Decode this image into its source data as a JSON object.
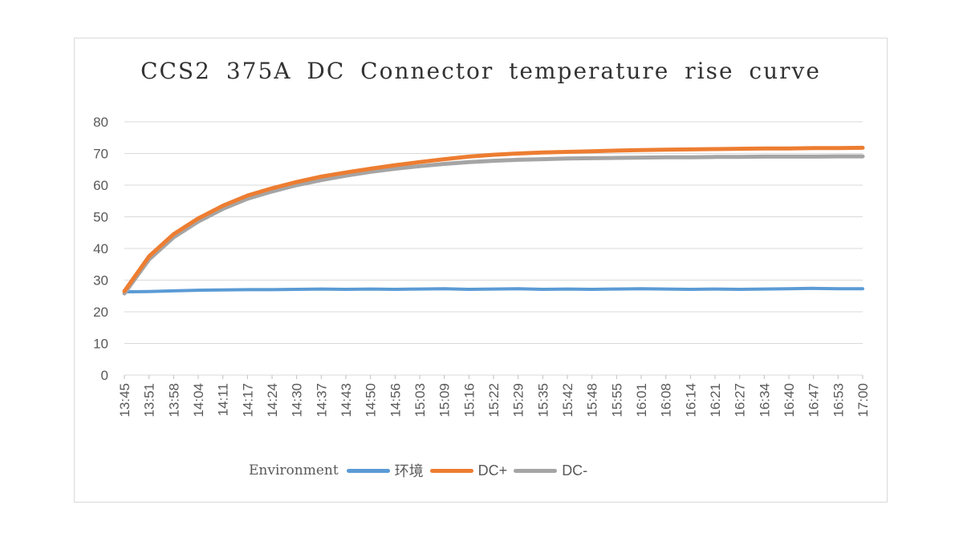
{
  "chart_data": {
    "type": "line",
    "title": "CCS2 375A DC Connector temperature rise curve",
    "xlabel": "",
    "ylabel": "",
    "ylim": [
      0,
      80
    ],
    "yticks": [
      0,
      10,
      20,
      30,
      40,
      50,
      60,
      70,
      80
    ],
    "grid": true,
    "legend_position": "bottom",
    "legend_prefix": "Environment",
    "categories": [
      "13:45",
      "13:51",
      "13:58",
      "14:04",
      "14:11",
      "14:17",
      "14:24",
      "14:30",
      "14:37",
      "14:43",
      "14:50",
      "14:56",
      "15:03",
      "15:09",
      "15:16",
      "15:22",
      "15:29",
      "15:35",
      "15:42",
      "15:48",
      "15:55",
      "16:01",
      "16:08",
      "16:14",
      "16:21",
      "16:27",
      "16:34",
      "16:40",
      "16:47",
      "16:53",
      "17:00"
    ],
    "series": [
      {
        "name": "环境",
        "color": "#5b9bd5",
        "values": [
          26.3,
          26.4,
          26.6,
          26.8,
          26.9,
          27.0,
          27.0,
          27.1,
          27.2,
          27.1,
          27.2,
          27.1,
          27.2,
          27.3,
          27.1,
          27.2,
          27.3,
          27.1,
          27.2,
          27.1,
          27.2,
          27.3,
          27.2,
          27.1,
          27.2,
          27.1,
          27.2,
          27.3,
          27.4,
          27.3,
          27.3
        ]
      },
      {
        "name": "DC+",
        "color": "#ed7d31",
        "values": [
          26.5,
          37.5,
          44.5,
          49.5,
          53.5,
          56.7,
          59.0,
          61.0,
          62.7,
          64.0,
          65.2,
          66.3,
          67.3,
          68.2,
          69.0,
          69.6,
          70.0,
          70.3,
          70.5,
          70.7,
          70.9,
          71.1,
          71.2,
          71.3,
          71.4,
          71.5,
          71.6,
          71.6,
          71.7,
          71.7,
          71.8
        ]
      },
      {
        "name": "DC-",
        "color": "#a5a5a5",
        "values": [
          25.8,
          36.5,
          43.5,
          48.5,
          52.5,
          55.7,
          58.0,
          60.0,
          61.6,
          63.0,
          64.2,
          65.2,
          66.0,
          66.7,
          67.3,
          67.7,
          68.0,
          68.2,
          68.4,
          68.5,
          68.6,
          68.7,
          68.8,
          68.8,
          68.9,
          68.9,
          69.0,
          69.0,
          69.0,
          69.1,
          69.1
        ]
      }
    ]
  }
}
